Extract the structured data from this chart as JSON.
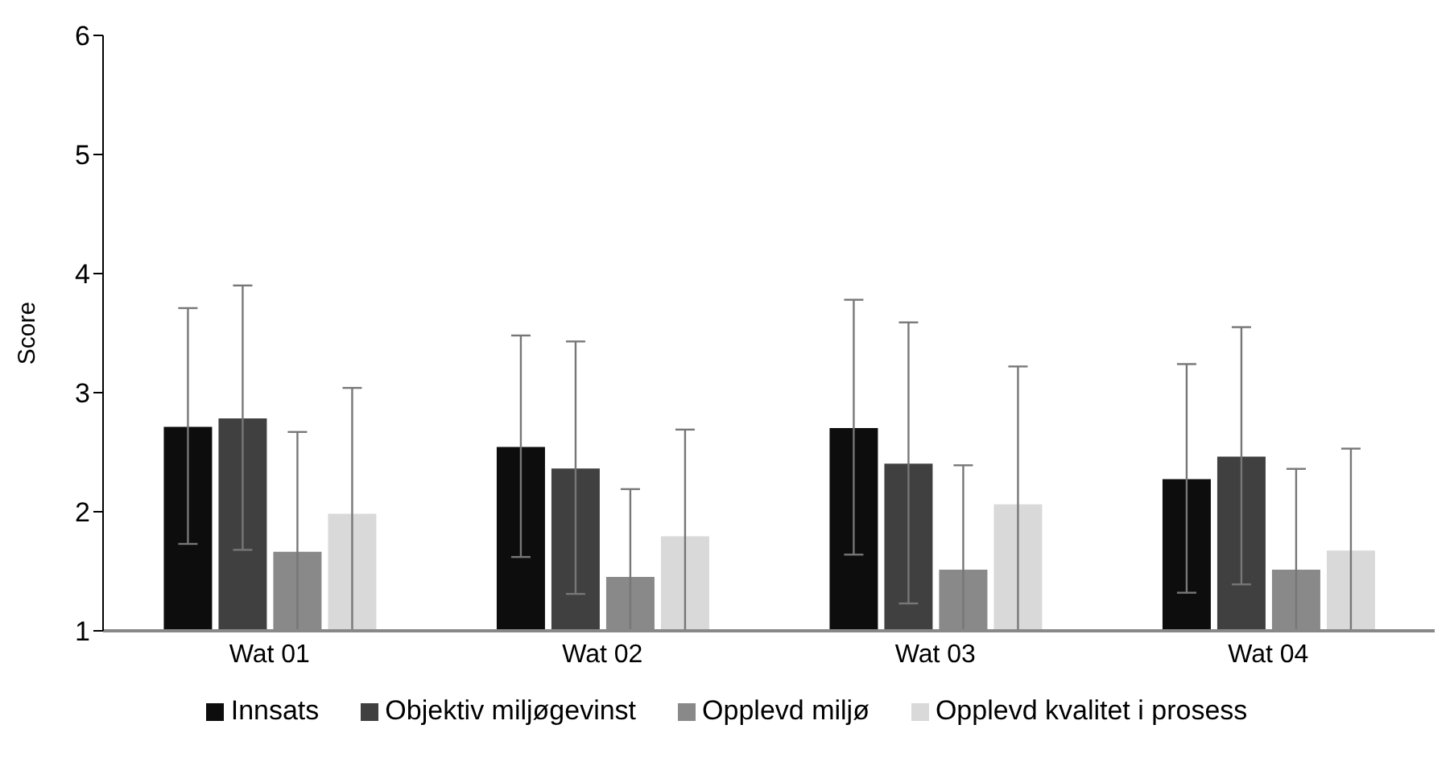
{
  "chart_data": {
    "type": "bar",
    "ylabel": "Score",
    "categories": [
      "Wat 01",
      "Wat 02",
      "Wat 03",
      "Wat 04"
    ],
    "series": [
      {
        "name": "Innsats",
        "color": "#0d0d0d",
        "values": [
          2.72,
          2.55,
          2.71,
          2.28
        ],
        "errors": [
          0.99,
          0.93,
          1.07,
          0.96
        ]
      },
      {
        "name": "Objektiv miljøgevinst",
        "color": "#404040",
        "values": [
          2.79,
          2.37,
          2.41,
          2.47
        ],
        "errors": [
          1.11,
          1.06,
          1.18,
          1.08
        ]
      },
      {
        "name": "Opplevd miljø",
        "color": "#898989",
        "values": [
          1.67,
          1.46,
          1.52,
          1.52
        ],
        "errors": [
          1.0,
          0.73,
          0.87,
          0.84
        ]
      },
      {
        "name": "Opplevd kvalitet i prosess",
        "color": "#d9d9d9",
        "values": [
          1.99,
          1.8,
          2.07,
          1.68
        ],
        "errors": [
          1.05,
          0.89,
          1.15,
          0.85
        ]
      }
    ],
    "ylim": [
      1,
      6
    ],
    "yticks": [
      1,
      2,
      3,
      4,
      5,
      6
    ],
    "grid": false,
    "legend": "bottom"
  }
}
